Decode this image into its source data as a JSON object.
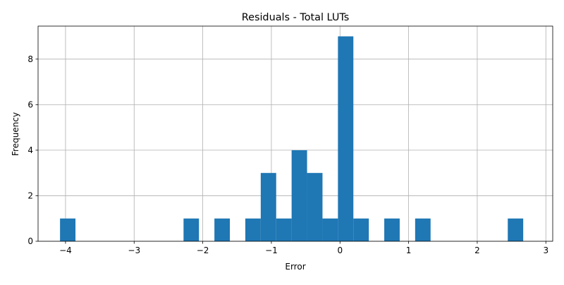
{
  "chart_data": {
    "type": "bar",
    "subtype": "histogram",
    "title": "Residuals - Total LUTs",
    "xlabel": "Error",
    "ylabel": "Frequency",
    "xlim": [
      -4.4,
      3.1
    ],
    "ylim": [
      0,
      9.45
    ],
    "grid": true,
    "color": "#1f77b4",
    "bin_width": 0.225,
    "bins": [
      {
        "x0": -4.08,
        "x1": -3.855,
        "count": 1
      },
      {
        "x0": -3.855,
        "x1": -3.63,
        "count": 0
      },
      {
        "x0": -3.63,
        "x1": -3.405,
        "count": 0
      },
      {
        "x0": -3.405,
        "x1": -3.18,
        "count": 0
      },
      {
        "x0": -3.18,
        "x1": -2.955,
        "count": 0
      },
      {
        "x0": -2.955,
        "x1": -2.73,
        "count": 0
      },
      {
        "x0": -2.73,
        "x1": -2.505,
        "count": 0
      },
      {
        "x0": -2.505,
        "x1": -2.28,
        "count": 0
      },
      {
        "x0": -2.28,
        "x1": -2.055,
        "count": 1
      },
      {
        "x0": -2.055,
        "x1": -1.83,
        "count": 0
      },
      {
        "x0": -1.83,
        "x1": -1.605,
        "count": 1
      },
      {
        "x0": -1.605,
        "x1": -1.38,
        "count": 0
      },
      {
        "x0": -1.38,
        "x1": -1.155,
        "count": 1
      },
      {
        "x0": -1.155,
        "x1": -0.93,
        "count": 3
      },
      {
        "x0": -0.93,
        "x1": -0.705,
        "count": 1
      },
      {
        "x0": -0.705,
        "x1": -0.48,
        "count": 4
      },
      {
        "x0": -0.48,
        "x1": -0.255,
        "count": 3
      },
      {
        "x0": -0.255,
        "x1": -0.03,
        "count": 1
      },
      {
        "x0": -0.03,
        "x1": 0.195,
        "count": 9
      },
      {
        "x0": 0.195,
        "x1": 0.42,
        "count": 1
      },
      {
        "x0": 0.42,
        "x1": 0.645,
        "count": 0
      },
      {
        "x0": 0.645,
        "x1": 0.87,
        "count": 1
      },
      {
        "x0": 0.87,
        "x1": 1.095,
        "count": 0
      },
      {
        "x0": 1.095,
        "x1": 1.32,
        "count": 1
      },
      {
        "x0": 1.32,
        "x1": 1.545,
        "count": 0
      },
      {
        "x0": 1.545,
        "x1": 1.77,
        "count": 0
      },
      {
        "x0": 1.77,
        "x1": 1.995,
        "count": 0
      },
      {
        "x0": 1.995,
        "x1": 2.22,
        "count": 0
      },
      {
        "x0": 2.22,
        "x1": 2.445,
        "count": 0
      },
      {
        "x0": 2.445,
        "x1": 2.67,
        "count": 1
      }
    ],
    "xticks": [
      {
        "value": -4,
        "label": "−4"
      },
      {
        "value": -3,
        "label": "−3"
      },
      {
        "value": -2,
        "label": "−2"
      },
      {
        "value": -1,
        "label": "−1"
      },
      {
        "value": 0,
        "label": "0"
      },
      {
        "value": 1,
        "label": "1"
      },
      {
        "value": 2,
        "label": "2"
      },
      {
        "value": 3,
        "label": "3"
      }
    ],
    "yticks": [
      {
        "value": 0,
        "label": "0"
      },
      {
        "value": 2,
        "label": "2"
      },
      {
        "value": 4,
        "label": "4"
      },
      {
        "value": 6,
        "label": "6"
      },
      {
        "value": 8,
        "label": "8"
      }
    ]
  }
}
